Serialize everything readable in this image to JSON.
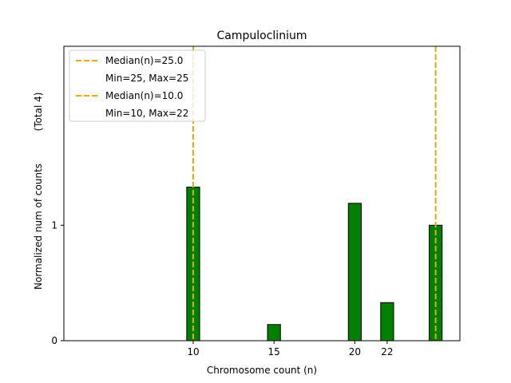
{
  "chart_data": {
    "type": "bar",
    "title": "Campuloclinium",
    "xlabel": "Chromosome count (n)",
    "ylabel": "Normalized num of counts",
    "ylabel_total": "(Total 4)",
    "xlim": [
      2,
      26.5
    ],
    "ylim": [
      0,
      2.55
    ],
    "x_ticks": [
      {
        "value": 10,
        "label": "10"
      },
      {
        "value": 15,
        "label": "15"
      },
      {
        "value": 20,
        "label": "20"
      },
      {
        "value": 22,
        "label": "22"
      }
    ],
    "y_ticks": [
      {
        "value": 0,
        "label": "0"
      },
      {
        "value": 1,
        "label": "1"
      }
    ],
    "bars": [
      {
        "x": 10,
        "value": 1.33
      },
      {
        "x": 15,
        "value": 0.14
      },
      {
        "x": 20,
        "value": 1.19
      },
      {
        "x": 22,
        "value": 0.33
      },
      {
        "x": 25,
        "value": 1.0
      }
    ],
    "bar_width": 0.8,
    "bar_color": "#008000",
    "bar_edge_color": "#000000",
    "median_lines": [
      {
        "x": 25,
        "label": "Median(n)=25.0",
        "range_label": "Min=25, Max=25"
      },
      {
        "x": 10,
        "label": "Median(n)=10.0",
        "range_label": "Min=10, Max=22"
      }
    ],
    "median_color": "#f0a500",
    "legend_position": "upper left"
  }
}
